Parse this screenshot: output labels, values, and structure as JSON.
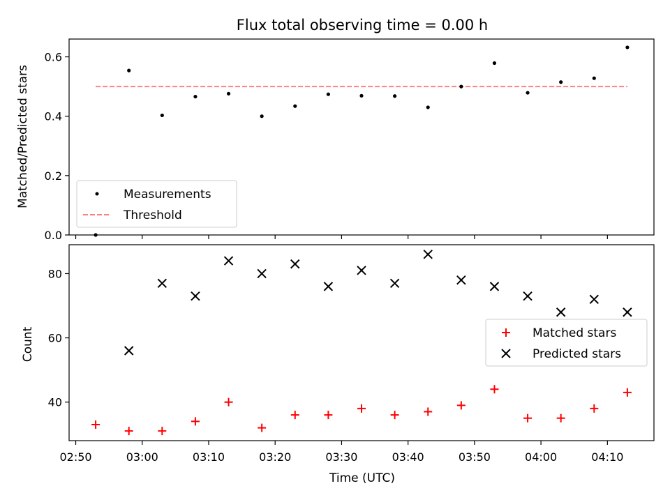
{
  "chart_data": [
    {
      "type": "scatter",
      "title": "Flux total observing time = 0.00 h",
      "xlabel": "",
      "ylabel": "Matched/Predicted stars",
      "ylim": [
        0,
        0.66
      ],
      "yticks": [
        "0.0",
        "0.2",
        "0.4",
        "0.6"
      ],
      "x": [
        "02:53",
        "02:58",
        "03:03",
        "03:08",
        "03:13",
        "03:18",
        "03:23",
        "03:28",
        "03:33",
        "03:38",
        "03:43",
        "03:48",
        "03:53",
        "03:58",
        "04:03",
        "04:08",
        "04:13"
      ],
      "series": [
        {
          "name": "Measurements",
          "marker": "dot",
          "color": "#000000",
          "values": [
            0.0,
            0.554,
            0.403,
            0.466,
            0.476,
            0.4,
            0.434,
            0.474,
            0.469,
            0.468,
            0.43,
            0.5,
            0.579,
            0.479,
            0.515,
            0.528,
            0.632
          ]
        },
        {
          "name": "Threshold",
          "marker": "dashed-line",
          "color": "#ff7f7f",
          "value": 0.5,
          "x_range": [
            "02:53",
            "04:13"
          ]
        }
      ],
      "legend": "lower-left",
      "grid": false
    },
    {
      "type": "scatter",
      "title": "",
      "xlabel": "Time (UTC)",
      "ylabel": "Count",
      "ylim": [
        28,
        89
      ],
      "yticks": [
        "40",
        "60",
        "80"
      ],
      "xlim": [
        "02:49",
        "04:17"
      ],
      "xticks": [
        "02:50",
        "03:00",
        "03:10",
        "03:20",
        "03:30",
        "03:40",
        "03:50",
        "04:00",
        "04:10"
      ],
      "x": [
        "02:53",
        "02:58",
        "03:03",
        "03:08",
        "03:13",
        "03:18",
        "03:23",
        "03:28",
        "03:33",
        "03:38",
        "03:43",
        "03:48",
        "03:53",
        "03:58",
        "04:03",
        "04:08",
        "04:13"
      ],
      "series": [
        {
          "name": "Matched stars",
          "marker": "plus",
          "color": "#ff0000",
          "values": [
            33,
            31,
            31,
            34,
            40,
            32,
            36,
            36,
            38,
            36,
            37,
            39,
            44,
            35,
            35,
            38,
            43
          ]
        },
        {
          "name": "Predicted stars",
          "marker": "x",
          "color": "#000000",
          "values": [
            null,
            56,
            77,
            73,
            84,
            80,
            83,
            76,
            81,
            77,
            86,
            78,
            76,
            73,
            68,
            72,
            68
          ]
        }
      ],
      "legend": "center-right",
      "grid": false
    }
  ]
}
